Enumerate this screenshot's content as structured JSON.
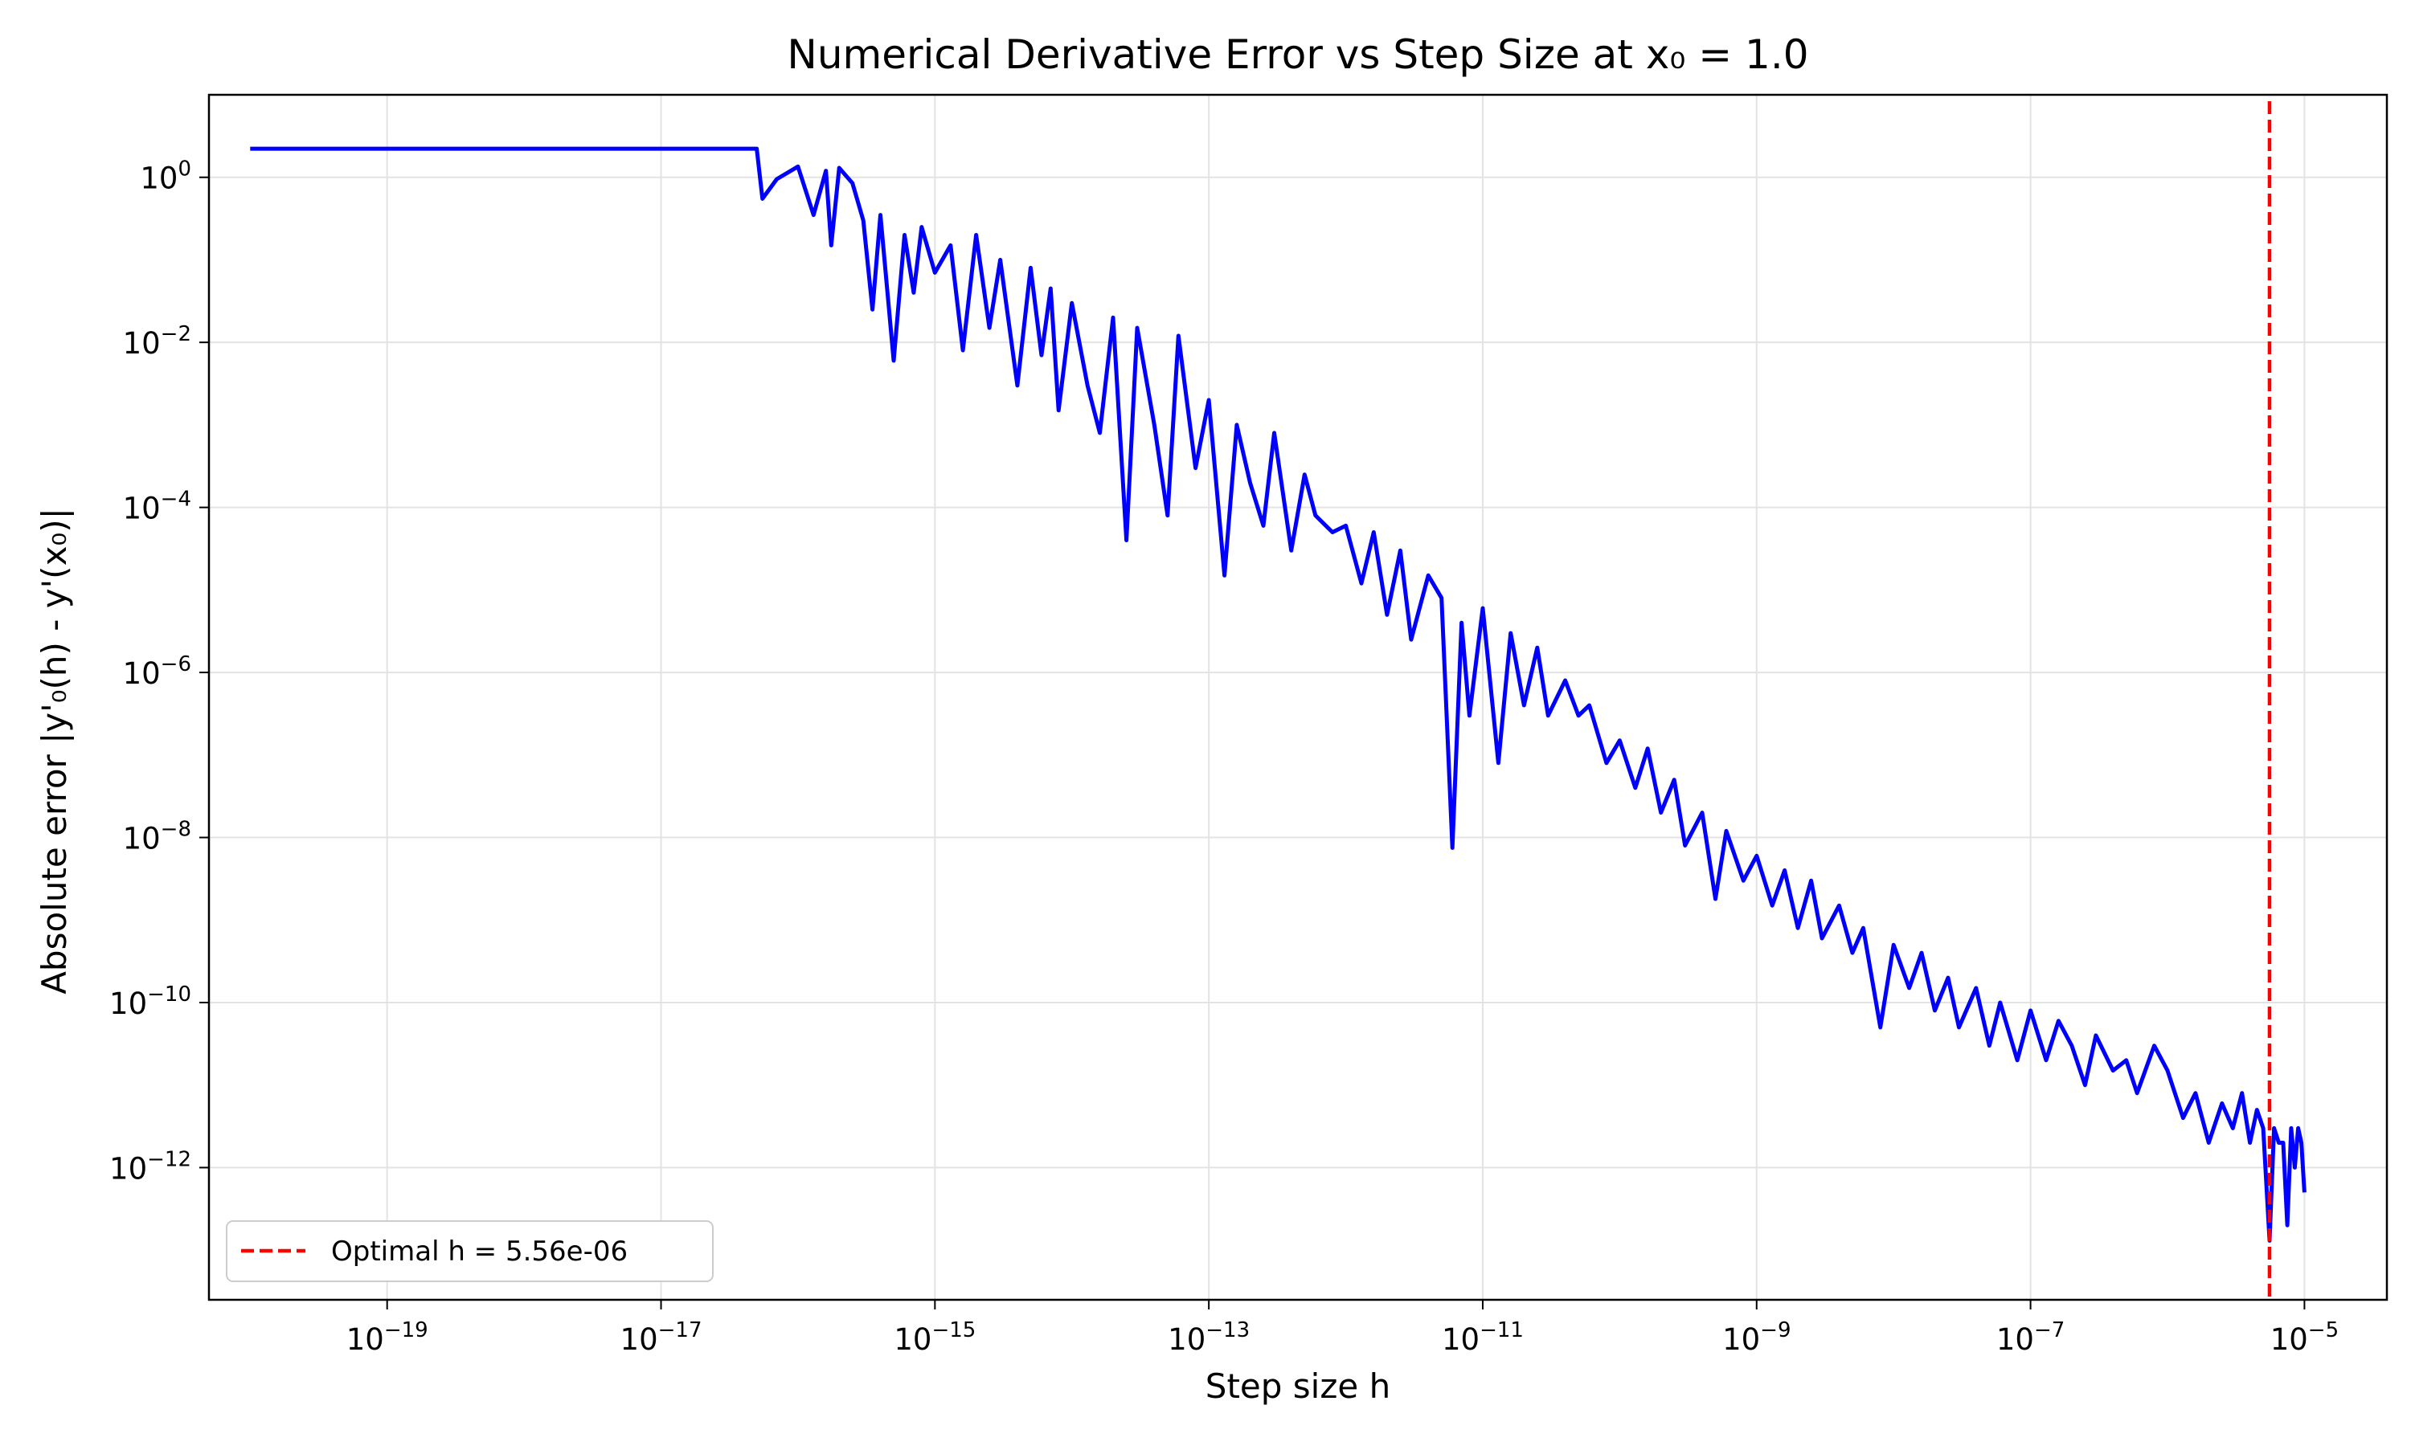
{
  "chart_data": {
    "type": "line",
    "title": "Numerical Derivative Error vs Step Size at x₀ = 1.0",
    "xlabel": "Step size h",
    "ylabel": "Absolute error |y'₀(h) - y'(x₀)|",
    "xscale": "log",
    "yscale": "log",
    "xlim": [
      5e-21,
      4e-05
    ],
    "ylim": [
      2.5e-14,
      10
    ],
    "grid": true,
    "legend": "lower-left",
    "x_ticks": [
      {
        "base": "10",
        "exp": "−19",
        "value": 1e-19
      },
      {
        "base": "10",
        "exp": "−17",
        "value": 1e-17
      },
      {
        "base": "10",
        "exp": "−15",
        "value": 1e-15
      },
      {
        "base": "10",
        "exp": "−13",
        "value": 1e-13
      },
      {
        "base": "10",
        "exp": "−11",
        "value": 1e-11
      },
      {
        "base": "10",
        "exp": "−9",
        "value": 1e-09
      },
      {
        "base": "10",
        "exp": "−7",
        "value": 1e-07
      },
      {
        "base": "10",
        "exp": "−5",
        "value": 1e-05
      }
    ],
    "y_ticks": [
      {
        "base": "10",
        "exp": "0",
        "value": 1
      },
      {
        "base": "10",
        "exp": "−2",
        "value": 0.01
      },
      {
        "base": "10",
        "exp": "−4",
        "value": 0.0001
      },
      {
        "base": "10",
        "exp": "−6",
        "value": 1e-06
      },
      {
        "base": "10",
        "exp": "−8",
        "value": 1e-08
      },
      {
        "base": "10",
        "exp": "−10",
        "value": 1e-10
      },
      {
        "base": "10",
        "exp": "−12",
        "value": 1e-12
      }
    ],
    "series": [
      {
        "color": "#0000ff",
        "x": [
          1e-20,
          5e-17,
          5.5e-17,
          7e-17,
          1e-16,
          1.3e-16,
          1.6e-16,
          1.75e-16,
          2e-16,
          2.5e-16,
          3e-16,
          3.5e-16,
          4e-16,
          5e-16,
          6e-16,
          7e-16,
          8e-16,
          1e-15,
          1.3e-15,
          1.6e-15,
          2e-15,
          2.5e-15,
          3e-15,
          4e-15,
          5e-15,
          6e-15,
          7e-15,
          8e-15,
          1e-14,
          1.3e-14,
          1.6e-14,
          2e-14,
          2.5e-14,
          3e-14,
          4e-14,
          5e-14,
          6e-14,
          8e-14,
          1e-13,
          1.3e-13,
          1.6e-13,
          2e-13,
          2.5e-13,
          3e-13,
          4e-13,
          5e-13,
          6e-13,
          8e-13,
          1e-12,
          1.3e-12,
          1.6e-12,
          2e-12,
          2.5e-12,
          3e-12,
          4e-12,
          5e-12,
          6e-12,
          7e-12,
          8e-12,
          1e-11,
          1.3e-11,
          1.6e-11,
          2e-11,
          2.5e-11,
          3e-11,
          4e-11,
          5e-11,
          6e-11,
          8e-11,
          1e-10,
          1.3e-10,
          1.6e-10,
          2e-10,
          2.5e-10,
          3e-10,
          4e-10,
          5e-10,
          6e-10,
          8e-10,
          1e-09,
          1.3e-09,
          1.6e-09,
          2e-09,
          2.5e-09,
          3e-09,
          4e-09,
          5e-09,
          6e-09,
          8e-09,
          1e-08,
          1.3e-08,
          1.6e-08,
          2e-08,
          2.5e-08,
          3e-08,
          4e-08,
          5e-08,
          6e-08,
          8e-08,
          1e-07,
          1.3e-07,
          1.6e-07,
          2e-07,
          2.5e-07,
          3e-07,
          4e-07,
          5e-07,
          6e-07,
          8e-07,
          1e-06,
          1.3e-06,
          1.6e-06,
          2e-06,
          2.5e-06,
          3e-06,
          3.5e-06,
          4e-06,
          4.5e-06,
          5e-06,
          5.56e-06,
          6e-06,
          6.5e-06,
          7e-06,
          7.5e-06,
          8e-06,
          8.5e-06,
          9e-06,
          9.5e-06,
          1e-05
        ],
        "y": [
          2.22,
          2.22,
          0.55,
          0.95,
          1.35,
          0.35,
          1.2,
          0.15,
          1.3,
          0.85,
          0.3,
          0.025,
          0.35,
          0.006,
          0.2,
          0.04,
          0.25,
          0.07,
          0.15,
          0.008,
          0.2,
          0.015,
          0.1,
          0.003,
          0.08,
          0.007,
          0.045,
          0.0015,
          0.03,
          0.003,
          0.0008,
          0.02,
          4e-05,
          0.015,
          0.001,
          8e-05,
          0.012,
          0.0003,
          0.002,
          1.5e-05,
          0.001,
          0.0002,
          6e-05,
          0.0008,
          3e-05,
          0.00025,
          8e-05,
          5e-05,
          6e-05,
          1.2e-05,
          5e-05,
          5e-06,
          3e-05,
          2.5e-06,
          1.5e-05,
          8e-06,
          7.5e-09,
          4e-06,
          3e-07,
          6e-06,
          8e-08,
          3e-06,
          4e-07,
          2e-06,
          3e-07,
          8e-07,
          3e-07,
          4e-07,
          8e-08,
          1.5e-07,
          4e-08,
          1.2e-07,
          2e-08,
          5e-08,
          8e-09,
          2e-08,
          1.8e-09,
          1.2e-08,
          3e-09,
          6e-09,
          1.5e-09,
          4e-09,
          8e-10,
          3e-09,
          6e-10,
          1.5e-09,
          4e-10,
          8e-10,
          5e-11,
          5e-10,
          1.5e-10,
          4e-10,
          8e-11,
          2e-10,
          5e-11,
          1.5e-10,
          3e-11,
          1e-10,
          2e-11,
          8e-11,
          2e-11,
          6e-11,
          3e-11,
          1e-11,
          4e-11,
          1.5e-11,
          2e-11,
          8e-12,
          3e-11,
          1.5e-11,
          4e-12,
          8e-12,
          2e-12,
          6e-12,
          3e-12,
          8e-12,
          2e-12,
          5e-12,
          3e-12,
          1.3e-13,
          3e-12,
          2e-12,
          2e-12,
          2e-13,
          3e-12,
          1e-12,
          3e-12,
          2e-12,
          5e-13
        ]
      },
      {
        "name": "Optimal h = 5.56e-06",
        "type": "vline",
        "color": "#ff0000",
        "x": 5.56e-06
      }
    ]
  }
}
